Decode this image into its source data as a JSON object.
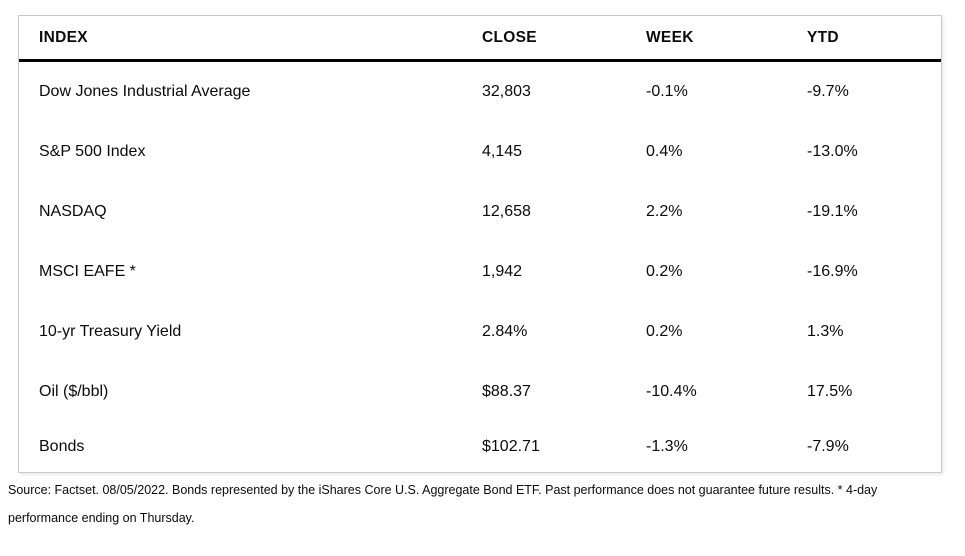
{
  "chart_data": {
    "type": "table",
    "columns": [
      "INDEX",
      "CLOSE",
      "WEEK",
      "YTD"
    ],
    "rows": [
      [
        "Dow Jones Industrial Average",
        "32,803",
        "-0.1%",
        "-9.7%"
      ],
      [
        "S&P 500 Index",
        "4,145",
        "0.4%",
        "-13.0%"
      ],
      [
        "NASDAQ",
        "12,658",
        "2.2%",
        "-19.1%"
      ],
      [
        "MSCI EAFE *",
        "1,942",
        "0.2%",
        "-16.9%"
      ],
      [
        "10-yr Treasury Yield",
        "2.84%",
        "0.2%",
        "1.3%"
      ],
      [
        "Oil ($/bbl)",
        "$88.37",
        "-10.4%",
        "17.5%"
      ],
      [
        "Bonds",
        "$102.71",
        "-1.3%",
        "-7.9%"
      ]
    ],
    "grid": "horizontal-header-rule-only",
    "legend_position": "none"
  },
  "footer": {
    "line1": "Source: Factset. 08/05/2022. Bonds represented by the iShares Core U.S. Aggregate Bond ETF. Past performance does not guarantee future results. * 4-day",
    "line2": "performance ending on Thursday."
  },
  "colors": {
    "text": "#0b0b0b",
    "header_rule": "#050505",
    "table_border": "#c9c9c9",
    "background": "#ffffff"
  }
}
